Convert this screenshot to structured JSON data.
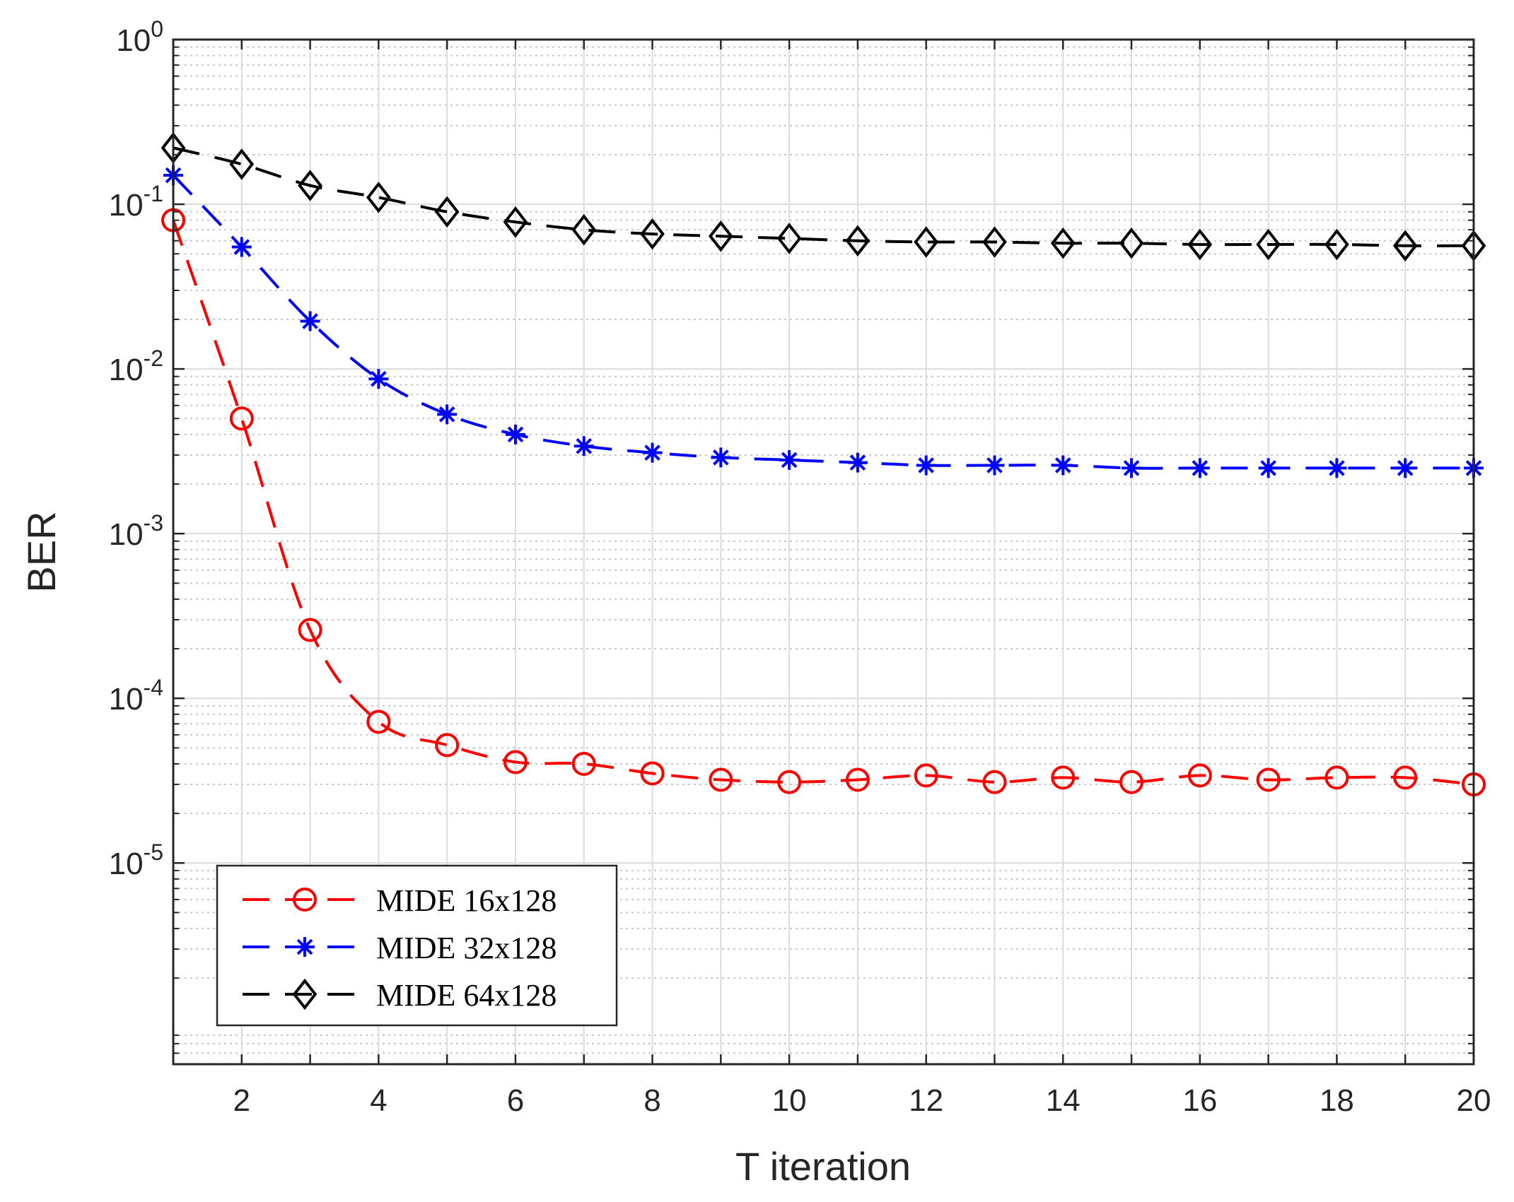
{
  "chart_data": {
    "type": "line",
    "xlabel": "T iteration",
    "ylabel": "BER",
    "xlim": [
      1,
      20
    ],
    "ylim": [
      6e-07,
      1
    ],
    "yscale": "log",
    "grid": true,
    "minor_grid": true,
    "legend_position": "bottom-left",
    "x_ticks": [
      2,
      4,
      6,
      8,
      10,
      12,
      14,
      16,
      18,
      20
    ],
    "y_ticks": [
      {
        "value": 1,
        "base": "10",
        "exp": "0"
      },
      {
        "value": 0.1,
        "base": "10",
        "exp": "-1"
      },
      {
        "value": 0.01,
        "base": "10",
        "exp": "-2"
      },
      {
        "value": 0.001,
        "base": "10",
        "exp": "-3"
      },
      {
        "value": 0.0001,
        "base": "10",
        "exp": "-4"
      },
      {
        "value": 1e-05,
        "base": "10",
        "exp": "-5"
      }
    ],
    "x": [
      1,
      2,
      3,
      4,
      5,
      6,
      7,
      8,
      9,
      10,
      11,
      12,
      13,
      14,
      15,
      16,
      17,
      18,
      19,
      20
    ],
    "series": [
      {
        "name": "MIDE 16x128",
        "color": "#ff0000",
        "marker": "circle",
        "values": [
          0.08,
          0.005,
          0.00026,
          7.2e-05,
          5.2e-05,
          4.1e-05,
          4e-05,
          3.5e-05,
          3.2e-05,
          3.1e-05,
          3.2e-05,
          3.4e-05,
          3.1e-05,
          3.3e-05,
          3.1e-05,
          3.4e-05,
          3.2e-05,
          3.3e-05,
          3.3e-05,
          3e-05
        ]
      },
      {
        "name": "MIDE 32x128",
        "color": "#0000ff",
        "marker": "asterisk",
        "values": [
          0.15,
          0.055,
          0.0195,
          0.0087,
          0.0053,
          0.004,
          0.0034,
          0.0031,
          0.0029,
          0.0028,
          0.0027,
          0.0026,
          0.0026,
          0.0026,
          0.0025,
          0.0025,
          0.0025,
          0.0025,
          0.0025,
          0.0025
        ]
      },
      {
        "name": "MIDE 64x128",
        "color": "#000000",
        "marker": "diamond",
        "values": [
          0.22,
          0.175,
          0.13,
          0.11,
          0.09,
          0.078,
          0.07,
          0.066,
          0.064,
          0.062,
          0.06,
          0.059,
          0.059,
          0.058,
          0.058,
          0.057,
          0.057,
          0.057,
          0.056,
          0.056
        ]
      }
    ]
  }
}
